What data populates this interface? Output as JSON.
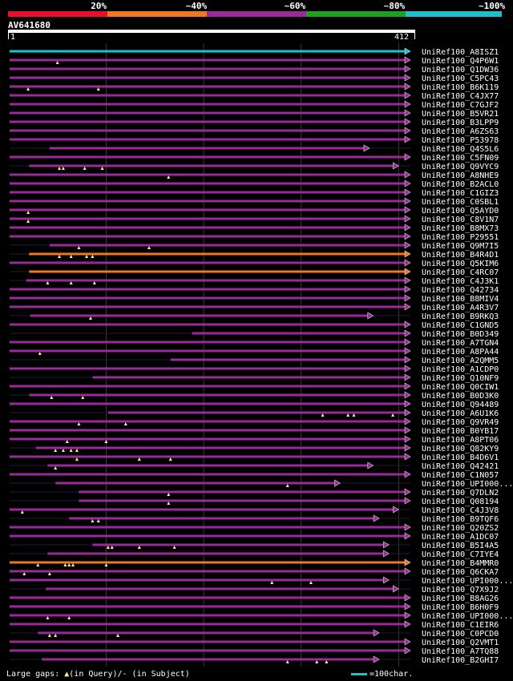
{
  "legend": [
    {
      "label": "20%",
      "color": "#e8102a"
    },
    {
      "label": "~40%",
      "color": "#f07820"
    },
    {
      "label": "~60%",
      "color": "#9a2a9a"
    },
    {
      "label": "~80%",
      "color": "#20a020"
    },
    {
      "label": "~100%",
      "color": "#20c0c8"
    }
  ],
  "query": {
    "name": "AV641680",
    "start": "1",
    "end": "412",
    "length": 412
  },
  "footer": {
    "gaps_prefix": "Large gaps: ",
    "query_gap": "(in Query)/",
    "subject_gap": "- (in Subject)",
    "scale_label": "=100char."
  },
  "colors": {
    "hit": "#9a2a9a",
    "hit_orange": "#f07820",
    "hit_cyan": "#20c0c8",
    "gap_marker": "#ffee88"
  },
  "hits": [
    {
      "id": "UniRef100_A8ISZ1",
      "start": 1,
      "end": 412,
      "color": "cyan"
    },
    {
      "id": "UniRef100_Q4P6W1",
      "start": 1,
      "end": 412,
      "color": "purple",
      "gaps": [
        50
      ]
    },
    {
      "id": "UniRef100_Q1DW36",
      "start": 1,
      "end": 412,
      "color": "purple"
    },
    {
      "id": "UniRef100_C5PC43",
      "start": 1,
      "end": 412,
      "color": "purple"
    },
    {
      "id": "UniRef100_B6K119",
      "start": 1,
      "end": 412,
      "color": "purple",
      "gaps": [
        20,
        92
      ]
    },
    {
      "id": "UniRef100_C4JX77",
      "start": 1,
      "end": 412,
      "color": "purple"
    },
    {
      "id": "UniRef100_C7GJF2",
      "start": 1,
      "end": 412,
      "color": "purple"
    },
    {
      "id": "UniRef100_B5VR21",
      "start": 1,
      "end": 412,
      "color": "purple"
    },
    {
      "id": "UniRef100_B3LPP9",
      "start": 1,
      "end": 412,
      "color": "purple"
    },
    {
      "id": "UniRef100_A6ZS63",
      "start": 1,
      "end": 412,
      "color": "purple"
    },
    {
      "id": "UniRef100_P53978",
      "start": 1,
      "end": 412,
      "color": "purple"
    },
    {
      "id": "UniRef100_Q4S5L6",
      "start": 42,
      "end": 370,
      "color": "purple"
    },
    {
      "id": "UniRef100_C5FN09",
      "start": 1,
      "end": 412,
      "color": "purple"
    },
    {
      "id": "UniRef100_Q9VYC9",
      "start": 21,
      "end": 400,
      "color": "purple",
      "gaps": [
        52,
        56,
        78,
        96
      ]
    },
    {
      "id": "UniRef100_A8NHE9",
      "start": 1,
      "end": 412,
      "color": "purple",
      "gaps": [
        164
      ]
    },
    {
      "id": "UniRef100_B2ACL0",
      "start": 1,
      "end": 412,
      "color": "purple"
    },
    {
      "id": "UniRef100_C1GIZ3",
      "start": 1,
      "end": 412,
      "color": "purple"
    },
    {
      "id": "UniRef100_C0SBL1",
      "start": 1,
      "end": 412,
      "color": "purple"
    },
    {
      "id": "UniRef100_Q5AYD0",
      "start": 1,
      "end": 412,
      "color": "purple",
      "gaps": [
        20
      ]
    },
    {
      "id": "UniRef100_C8V1N7",
      "start": 1,
      "end": 412,
      "color": "purple",
      "gaps": [
        20
      ]
    },
    {
      "id": "UniRef100_B8MX73",
      "start": 1,
      "end": 412,
      "color": "purple"
    },
    {
      "id": "UniRef100_P29551",
      "start": 1,
      "end": 412,
      "color": "purple"
    },
    {
      "id": "UniRef100_Q9M7I5",
      "start": 42,
      "end": 412,
      "color": "purple",
      "gaps": [
        72,
        144
      ]
    },
    {
      "id": "UniRef100_B4R4D1",
      "start": 21,
      "end": 412,
      "color": "orange",
      "gaps": [
        52,
        64,
        80,
        86
      ]
    },
    {
      "id": "UniRef100_Q5KIM6",
      "start": 1,
      "end": 412,
      "color": "purple"
    },
    {
      "id": "UniRef100_C4RC07",
      "start": 21,
      "end": 412,
      "color": "orange"
    },
    {
      "id": "UniRef100_C4J3K1",
      "start": 18,
      "end": 412,
      "color": "purple",
      "gaps": [
        40,
        64,
        88
      ]
    },
    {
      "id": "UniRef100_Q42734",
      "start": 1,
      "end": 412,
      "color": "purple"
    },
    {
      "id": "UniRef100_B8MIV4",
      "start": 1,
      "end": 412,
      "color": "purple"
    },
    {
      "id": "UniRef100_A4R3V7",
      "start": 1,
      "end": 412,
      "color": "purple"
    },
    {
      "id": "UniRef100_B9RKQ3",
      "start": 22,
      "end": 374,
      "color": "purple",
      "gaps": [
        84
      ]
    },
    {
      "id": "UniRef100_C1GND5",
      "start": 1,
      "end": 412,
      "color": "purple"
    },
    {
      "id": "UniRef100_B0D349",
      "start": 188,
      "end": 412,
      "color": "purple"
    },
    {
      "id": "UniRef100_A7TGN4",
      "start": 1,
      "end": 412,
      "color": "purple"
    },
    {
      "id": "UniRef100_A8PA44",
      "start": 1,
      "end": 412,
      "color": "purple",
      "gaps": [
        32
      ]
    },
    {
      "id": "UniRef100_A2QMM5",
      "start": 166,
      "end": 412,
      "color": "purple"
    },
    {
      "id": "UniRef100_A1CDP0",
      "start": 1,
      "end": 412,
      "color": "purple"
    },
    {
      "id": "UniRef100_Q10NF9",
      "start": 86,
      "end": 412,
      "color": "purple"
    },
    {
      "id": "UniRef100_Q0CIW1",
      "start": 1,
      "end": 412,
      "color": "purple"
    },
    {
      "id": "UniRef100_B0D3K0",
      "start": 21,
      "end": 412,
      "color": "purple",
      "gaps": [
        44,
        76
      ]
    },
    {
      "id": "UniRef100_Q94489",
      "start": 1,
      "end": 412,
      "color": "purple"
    },
    {
      "id": "UniRef100_A6U1K6",
      "start": 102,
      "end": 412,
      "color": "purple",
      "gaps": [
        322,
        348,
        354,
        394
      ]
    },
    {
      "id": "UniRef100_Q9VR49",
      "start": 1,
      "end": 412,
      "color": "purple",
      "gaps": [
        72,
        120
      ]
    },
    {
      "id": "UniRef100_B0YB17",
      "start": 1,
      "end": 412,
      "color": "purple"
    },
    {
      "id": "UniRef100_A8PT06",
      "start": 1,
      "end": 412,
      "color": "purple",
      "gaps": [
        60,
        100
      ]
    },
    {
      "id": "UniRef100_Q82KY9",
      "start": 28,
      "end": 412,
      "color": "purple",
      "gaps": [
        48,
        56,
        64,
        70
      ]
    },
    {
      "id": "UniRef100_B4D6V1",
      "start": 1,
      "end": 412,
      "color": "purple",
      "gaps": [
        70,
        134,
        166
      ]
    },
    {
      "id": "UniRef100_Q42421",
      "start": 40,
      "end": 374,
      "color": "purple",
      "gaps": [
        48
      ]
    },
    {
      "id": "UniRef100_C1N057",
      "start": 1,
      "end": 412,
      "color": "purple"
    },
    {
      "id": "UniRef100_UPI000...",
      "start": 48,
      "end": 340,
      "color": "purple",
      "gaps": [
        286
      ]
    },
    {
      "id": "UniRef100_Q7DLN2",
      "start": 72,
      "end": 412,
      "color": "purple",
      "gaps": [
        164
      ]
    },
    {
      "id": "UniRef100_Q08194",
      "start": 72,
      "end": 412,
      "color": "purple",
      "gaps": [
        164
      ]
    },
    {
      "id": "UniRef100_C4J3V8",
      "start": 1,
      "end": 400,
      "color": "purple",
      "gaps": [
        14
      ]
    },
    {
      "id": "UniRef100_B9TQF6",
      "start": 62,
      "end": 380,
      "color": "purple",
      "gaps": [
        86,
        92
      ]
    },
    {
      "id": "UniRef100_Q20ZS2",
      "start": 1,
      "end": 412,
      "color": "purple"
    },
    {
      "id": "UniRef100_A1DC07",
      "start": 1,
      "end": 412,
      "color": "purple"
    },
    {
      "id": "UniRef100_B5I4A5",
      "start": 86,
      "end": 390,
      "color": "purple",
      "gaps": [
        102,
        106,
        134,
        170
      ]
    },
    {
      "id": "UniRef100_C7IYE4",
      "start": 40,
      "end": 390,
      "color": "purple"
    },
    {
      "id": "UniRef100_B4MMR0",
      "start": 1,
      "end": 412,
      "color": "orange",
      "gaps": [
        30,
        58,
        62,
        66,
        100
      ]
    },
    {
      "id": "UniRef100_Q6CKA7",
      "start": 1,
      "end": 412,
      "color": "purple",
      "gaps": [
        16,
        42
      ]
    },
    {
      "id": "UniRef100_UPI000...",
      "start": 1,
      "end": 390,
      "color": "purple",
      "gaps": [
        270,
        310
      ]
    },
    {
      "id": "UniRef100_Q7X9J2",
      "start": 38,
      "end": 400,
      "color": "purple"
    },
    {
      "id": "UniRef100_B8AG26",
      "start": 1,
      "end": 412,
      "color": "purple"
    },
    {
      "id": "UniRef100_B6H0F9",
      "start": 1,
      "end": 412,
      "color": "purple"
    },
    {
      "id": "UniRef100_UPI000...",
      "start": 1,
      "end": 412,
      "color": "purple",
      "gaps": [
        40,
        62
      ]
    },
    {
      "id": "UniRef100_C1EIR6",
      "start": 1,
      "end": 412,
      "color": "purple"
    },
    {
      "id": "UniRef100_C0PCD0",
      "start": 30,
      "end": 380,
      "color": "purple",
      "gaps": [
        42,
        48,
        112
      ]
    },
    {
      "id": "UniRef100_Q2VMT1",
      "start": 1,
      "end": 412,
      "color": "purple"
    },
    {
      "id": "UniRef100_A7TQ88",
      "start": 1,
      "end": 412,
      "color": "purple"
    },
    {
      "id": "UniRef100_B2GHI7",
      "start": 34,
      "end": 380,
      "color": "purple",
      "gaps": [
        286,
        316,
        326
      ]
    }
  ]
}
